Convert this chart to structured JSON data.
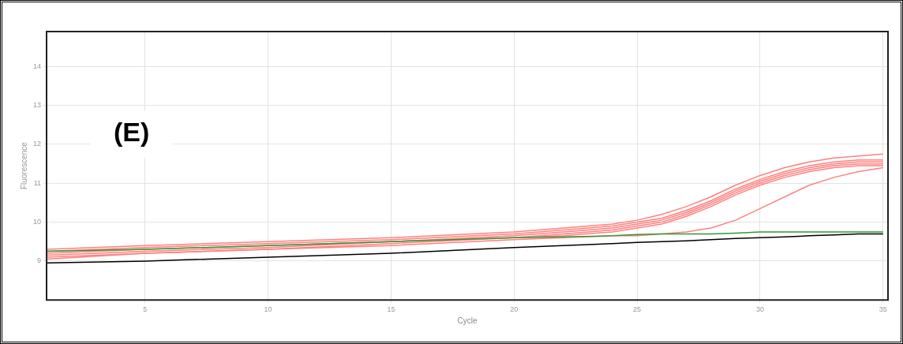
{
  "chart_data": {
    "type": "line",
    "xlabel": "Cycle",
    "ylabel": "Fluorescence",
    "annotations": [
      "(E)"
    ],
    "x": [
      1,
      5,
      10,
      15,
      20,
      22,
      24,
      25,
      26,
      27,
      28,
      29,
      30,
      31,
      32,
      33,
      34,
      35
    ],
    "series": [
      {
        "color": "#ff8080",
        "values": [
          9.3,
          9.4,
          9.5,
          9.6,
          9.75,
          9.85,
          9.95,
          10.05,
          10.2,
          10.4,
          10.65,
          10.95,
          11.2,
          11.4,
          11.55,
          11.65,
          11.7,
          11.75
        ]
      },
      {
        "color": "#ff8080",
        "values": [
          9.25,
          9.35,
          9.45,
          9.55,
          9.7,
          9.8,
          9.9,
          10.0,
          10.1,
          10.3,
          10.55,
          10.85,
          11.1,
          11.3,
          11.45,
          11.55,
          11.6,
          11.6
        ]
      },
      {
        "color": "#ff8080",
        "values": [
          9.2,
          9.3,
          9.4,
          9.5,
          9.65,
          9.75,
          9.85,
          9.95,
          10.05,
          10.25,
          10.5,
          10.8,
          11.05,
          11.25,
          11.4,
          11.5,
          11.55,
          11.55
        ]
      },
      {
        "color": "#ff8080",
        "values": [
          9.15,
          9.25,
          9.35,
          9.5,
          9.6,
          9.7,
          9.8,
          9.9,
          10.0,
          10.2,
          10.45,
          10.75,
          11.0,
          11.2,
          11.35,
          11.45,
          11.5,
          11.5
        ]
      },
      {
        "color": "#ff8080",
        "values": [
          9.1,
          9.2,
          9.3,
          9.45,
          9.6,
          9.65,
          9.75,
          9.85,
          9.95,
          10.15,
          10.4,
          10.7,
          10.95,
          11.15,
          11.3,
          11.4,
          11.45,
          11.45
        ]
      },
      {
        "color": "#ff8080",
        "values": [
          9.05,
          9.2,
          9.3,
          9.4,
          9.55,
          9.6,
          9.65,
          9.65,
          9.7,
          9.75,
          9.85,
          10.05,
          10.35,
          10.65,
          10.95,
          11.15,
          11.3,
          11.4
        ]
      },
      {
        "color": "#339933",
        "values": [
          9.25,
          9.3,
          9.4,
          9.5,
          9.6,
          9.62,
          9.65,
          9.68,
          9.7,
          9.7,
          9.7,
          9.72,
          9.75,
          9.75,
          9.75,
          9.75,
          9.75,
          9.75
        ]
      },
      {
        "color": "#000000",
        "values": [
          8.95,
          9.0,
          9.1,
          9.2,
          9.35,
          9.4,
          9.45,
          9.48,
          9.5,
          9.52,
          9.55,
          9.58,
          9.6,
          9.62,
          9.65,
          9.67,
          9.7,
          9.7
        ]
      }
    ],
    "xlim": [
      1,
      35.2
    ],
    "xticks": [
      5,
      10,
      15,
      20,
      25,
      30,
      35
    ],
    "ylim": [
      8,
      14.9
    ],
    "yticks": [
      9,
      10,
      11,
      12,
      13,
      14
    ],
    "grid": true,
    "legend": false,
    "marker": "none",
    "line_style": "solid"
  }
}
